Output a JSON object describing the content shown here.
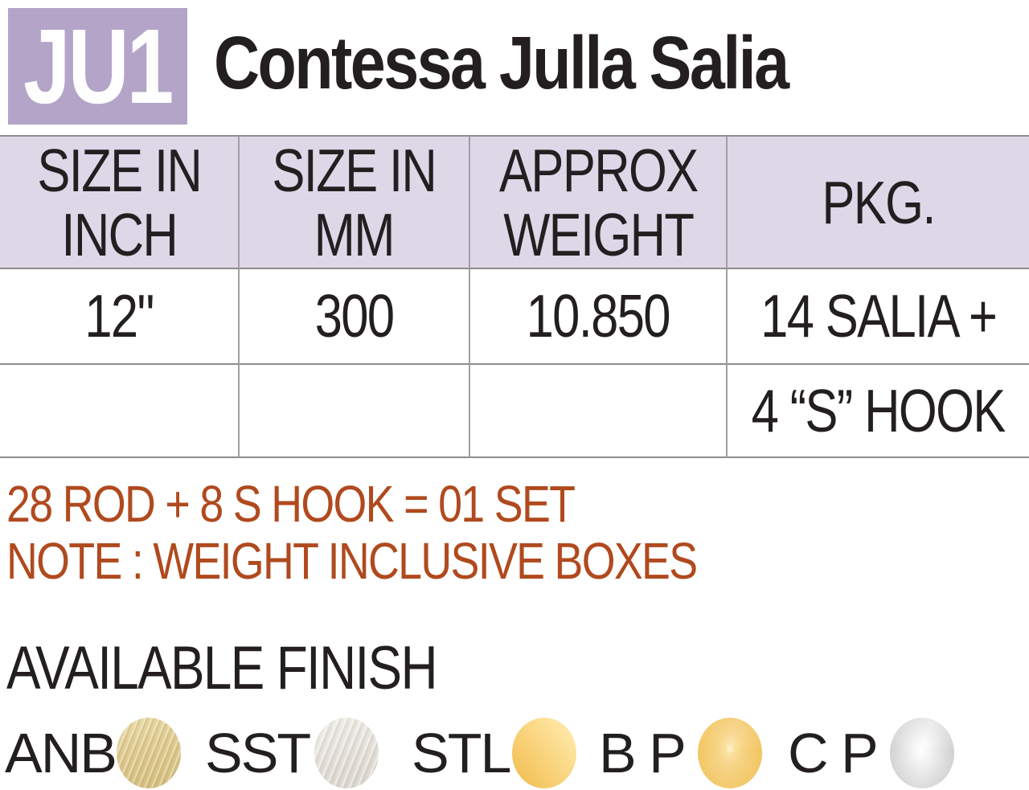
{
  "product": {
    "code": "JU1",
    "name": "Contessa Julla Salia",
    "badge_color": "#b3a4c8"
  },
  "spec_table": {
    "header_bg": "#ded7e8",
    "columns": [
      {
        "line1": "SIZE IN",
        "line2": "INCH"
      },
      {
        "line1": "SIZE IN",
        "line2": "MM"
      },
      {
        "line1": "APPROX",
        "line2": "WEIGHT"
      },
      {
        "line1": "PKG.",
        "line2": ""
      }
    ],
    "rows": [
      [
        "12\"",
        "300",
        "10.850",
        "14 SALIA +"
      ],
      [
        "",
        "",
        "",
        "4 “S” HOOK"
      ]
    ]
  },
  "notes": {
    "color": "#b04a1e",
    "line1": "28 ROD + 8 S HOOK = 01 SET",
    "line2": "NOTE : WEIGHT INCLUSIVE BOXES"
  },
  "finish": {
    "title": "AVAILABLE FINISH",
    "options": [
      {
        "label": "ANB",
        "swatch": "antique-brushed-brass",
        "color": "#ddc98e"
      },
      {
        "label": "SST",
        "swatch": "satin-steel",
        "color": "#e6e3dc"
      },
      {
        "label": "STL",
        "swatch": "satin-gold",
        "color": "#f9d47a"
      },
      {
        "label": "B P",
        "swatch": "brass-polished",
        "color": "#f3c867"
      },
      {
        "label": "C P",
        "swatch": "chrome-polished",
        "color": "#d9d9da"
      }
    ]
  }
}
